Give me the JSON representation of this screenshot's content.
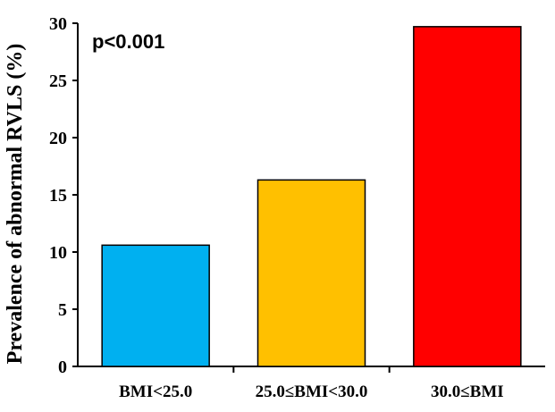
{
  "chart_data": {
    "type": "bar",
    "categories": [
      "BMI<25.0",
      "25.0≤BMI<30.0",
      "30.0≤BMI"
    ],
    "values": [
      10.6,
      16.3,
      29.7
    ],
    "colors": [
      "#00b0f0",
      "#ffc000",
      "#ff0000"
    ],
    "title": "",
    "xlabel": "",
    "ylabel": "Prevalence of abnormal RVLS (%)",
    "ylim": [
      0,
      30
    ],
    "yticks": [
      0,
      5,
      10,
      15,
      20,
      25,
      30
    ],
    "annotation": "p<0.001",
    "grid": false
  }
}
